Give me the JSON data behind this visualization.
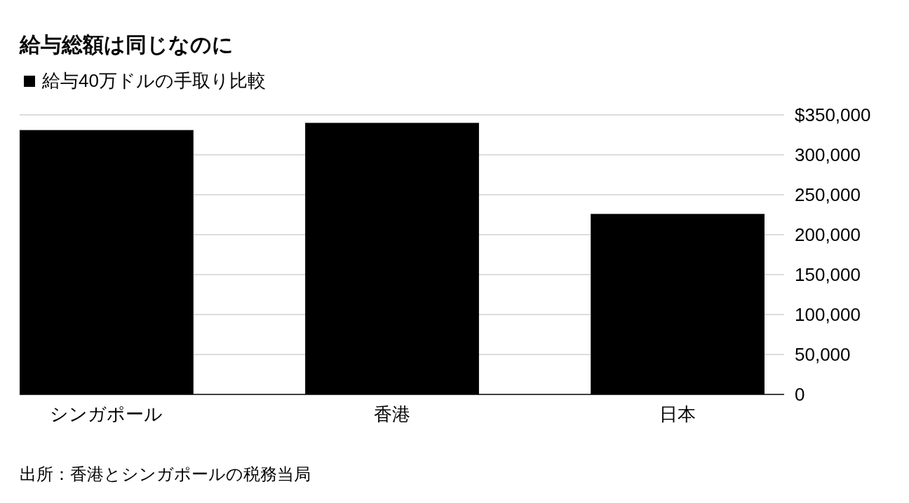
{
  "chart_data": {
    "type": "bar",
    "title": "給与総額は同じなのに",
    "categories": [
      "シンガポール",
      "香港",
      "日本"
    ],
    "series": [
      {
        "name": "給与40万ドルの手取り比較",
        "color": "#000000",
        "values": [
          331000,
          340000,
          226000
        ]
      }
    ],
    "ylim": [
      0,
      350000
    ],
    "yticks": [
      0,
      {
        "value": 50000,
        "label": "50,000"
      },
      {
        "value": 100000,
        "label": "100,000"
      },
      {
        "value": 150000,
        "label": "150,000"
      },
      {
        "value": 200000,
        "label": "200,000"
      },
      {
        "value": 250000,
        "label": "250,000"
      },
      {
        "value": 300000,
        "label": "300,000"
      },
      {
        "value": 350000,
        "label": "$350,000"
      }
    ],
    "grid": "y",
    "legend": "top left",
    "annotations": [
      "出所：香港とシンガポールの税務当局"
    ]
  }
}
